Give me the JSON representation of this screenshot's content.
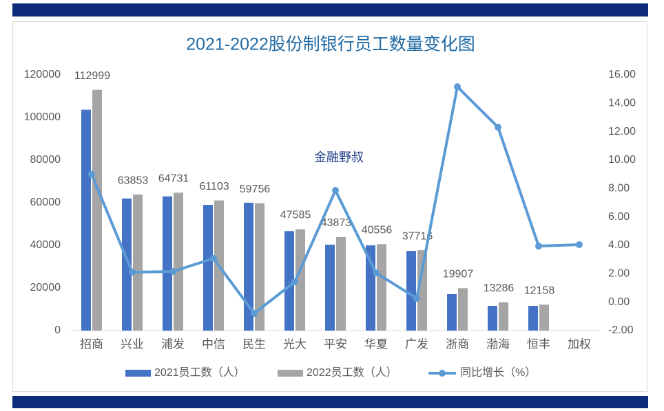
{
  "chart_data": {
    "type": "bar",
    "title": "2021-2022股份制银行员工数量变化图",
    "annotation": "金融野叔",
    "categories": [
      "招商",
      "兴业",
      "浦发",
      "中信",
      "民生",
      "光大",
      "平安",
      "华夏",
      "广发",
      "浙商",
      "渤海",
      "恒丰",
      "加权"
    ],
    "series": [
      {
        "name": "2021员工数（人）",
        "color": "#4472c4",
        "type": "bar",
        "values": [
          103669,
          62000,
          63000,
          59000,
          60000,
          46700,
          40300,
          40000,
          37400,
          17100,
          11600,
          11600,
          null
        ]
      },
      {
        "name": "2022员工数（人）",
        "color": "#a5a5a5",
        "type": "bar",
        "data_labels": true,
        "values": [
          112999,
          63853,
          64731,
          61103,
          59756,
          47585,
          43873,
          40556,
          37716,
          19907,
          13286,
          12158,
          null
        ]
      },
      {
        "name": "同比增长（%）",
        "color": "#5b9bd5",
        "type": "line",
        "axis": "y2",
        "values": [
          9.0,
          2.11,
          2.16,
          3.08,
          -0.79,
          1.43,
          7.87,
          2.06,
          0.27,
          15.17,
          12.32,
          3.95,
          4.05
        ]
      }
    ],
    "ylim": [
      0,
      120000
    ],
    "yticks": [
      0,
      20000,
      40000,
      60000,
      80000,
      100000,
      120000
    ],
    "y2lim": [
      -2,
      16
    ],
    "y2ticks": [
      {
        "value": -2,
        "label": "-2.00"
      },
      {
        "value": 0,
        "label": "0.00"
      },
      {
        "value": 2,
        "label": "2.00"
      },
      {
        "value": 4,
        "label": "4.00"
      },
      {
        "value": 6,
        "label": "6.00"
      },
      {
        "value": 8,
        "label": "8.00"
      },
      {
        "value": 10,
        "label": "10.00"
      },
      {
        "value": 12,
        "label": "12.00"
      },
      {
        "value": 14,
        "label": "14.00"
      },
      {
        "value": 16,
        "label": "16.00"
      }
    ],
    "grid": false,
    "legend": "bottom"
  }
}
